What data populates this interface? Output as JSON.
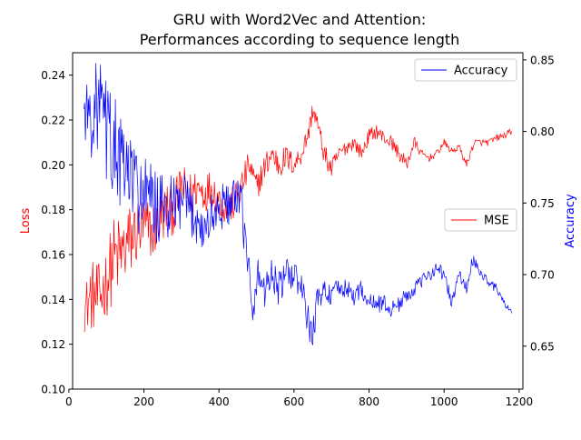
{
  "chart_data": {
    "type": "line",
    "title_line1": "GRU with Word2Vec and Attention:",
    "title_line2": "Performances according to sequence length",
    "xlabel": "",
    "ylabel_left": "Loss",
    "ylabel_right": "Accuracy",
    "xlim": [
      10,
      1210
    ],
    "ylim_left": [
      0.1,
      0.25
    ],
    "ylim_right": [
      0.62,
      0.855
    ],
    "x_ticks": [
      0,
      200,
      400,
      600,
      800,
      1000,
      1200
    ],
    "x_tick_labels": [
      "0",
      "200",
      "400",
      "600",
      "800",
      "1000",
      "1200"
    ],
    "y_left_ticks": [
      0.1,
      0.12,
      0.14,
      0.16,
      0.18,
      0.2,
      0.22,
      0.24
    ],
    "y_left_tick_labels": [
      "0.10",
      "0.12",
      "0.14",
      "0.16",
      "0.18",
      "0.20",
      "0.22",
      "0.24"
    ],
    "y_right_ticks": [
      0.65,
      0.7,
      0.75,
      0.8,
      0.85
    ],
    "y_right_tick_labels": [
      "0.65",
      "0.70",
      "0.75",
      "0.80",
      "0.85"
    ],
    "grid": false,
    "series": [
      {
        "name": "MSE",
        "axis": "left",
        "color": "#ff0000",
        "legend_location": "center-right",
        "x": [
          40,
          60,
          80,
          100,
          120,
          140,
          160,
          180,
          200,
          220,
          240,
          260,
          280,
          300,
          320,
          340,
          360,
          380,
          400,
          420,
          440,
          460,
          480,
          500,
          520,
          540,
          560,
          580,
          600,
          620,
          640,
          650,
          660,
          680,
          700,
          720,
          740,
          760,
          780,
          800,
          820,
          840,
          860,
          880,
          900,
          920,
          940,
          960,
          980,
          1000,
          1020,
          1040,
          1060,
          1080,
          1100,
          1120,
          1140,
          1160,
          1180
        ],
        "values": [
          0.135,
          0.142,
          0.14,
          0.148,
          0.158,
          0.16,
          0.165,
          0.17,
          0.172,
          0.17,
          0.175,
          0.18,
          0.18,
          0.19,
          0.185,
          0.19,
          0.188,
          0.19,
          0.185,
          0.18,
          0.183,
          0.19,
          0.2,
          0.19,
          0.198,
          0.205,
          0.2,
          0.203,
          0.2,
          0.205,
          0.215,
          0.225,
          0.22,
          0.205,
          0.198,
          0.205,
          0.208,
          0.21,
          0.205,
          0.213,
          0.215,
          0.212,
          0.21,
          0.205,
          0.2,
          0.21,
          0.205,
          0.203,
          0.205,
          0.21,
          0.206,
          0.208,
          0.2,
          0.21,
          0.21,
          0.21,
          0.212,
          0.213,
          0.215
        ],
        "noise": [
          0.006,
          0.01,
          0.01,
          0.01,
          0.012,
          0.011,
          0.011,
          0.01,
          0.01,
          0.008,
          0.008,
          0.008,
          0.007,
          0.007,
          0.007,
          0.006,
          0.006,
          0.005,
          0.005,
          0.005,
          0.005,
          0.005,
          0.004,
          0.004,
          0.004,
          0.004,
          0.004,
          0.004,
          0.003,
          0.003,
          0.003,
          0.003,
          0.003,
          0.003,
          0.003,
          0.002,
          0.002,
          0.002,
          0.002,
          0.002,
          0.002,
          0.002,
          0.002,
          0.002,
          0.002,
          0.002,
          0.001,
          0.001,
          0.001,
          0.001,
          0.001,
          0.001,
          0.001,
          0.001,
          0.001,
          0.001,
          0.001,
          0.001,
          0.001
        ]
      },
      {
        "name": "Accuracy",
        "axis": "right",
        "color": "#0000ff",
        "legend_location": "upper-right",
        "x": [
          40,
          60,
          80,
          100,
          120,
          140,
          160,
          180,
          200,
          220,
          240,
          260,
          280,
          300,
          320,
          340,
          360,
          380,
          400,
          420,
          440,
          460,
          480,
          490,
          500,
          520,
          540,
          560,
          580,
          600,
          620,
          640,
          650,
          660,
          680,
          700,
          720,
          740,
          760,
          780,
          800,
          820,
          840,
          860,
          880,
          900,
          920,
          940,
          960,
          980,
          1000,
          1020,
          1040,
          1060,
          1075,
          1100,
          1120,
          1140,
          1160,
          1180
        ],
        "values": [
          0.815,
          0.81,
          0.82,
          0.8,
          0.79,
          0.775,
          0.77,
          0.76,
          0.755,
          0.75,
          0.745,
          0.745,
          0.745,
          0.75,
          0.745,
          0.74,
          0.73,
          0.74,
          0.745,
          0.75,
          0.75,
          0.75,
          0.7,
          0.66,
          0.7,
          0.69,
          0.7,
          0.69,
          0.7,
          0.7,
          0.69,
          0.665,
          0.655,
          0.68,
          0.69,
          0.685,
          0.69,
          0.69,
          0.685,
          0.69,
          0.68,
          0.68,
          0.68,
          0.675,
          0.68,
          0.685,
          0.69,
          0.695,
          0.7,
          0.705,
          0.7,
          0.68,
          0.7,
          0.69,
          0.71,
          0.7,
          0.695,
          0.69,
          0.68,
          0.673
        ],
        "noise": [
          0.012,
          0.018,
          0.022,
          0.022,
          0.024,
          0.022,
          0.02,
          0.02,
          0.018,
          0.018,
          0.016,
          0.016,
          0.015,
          0.014,
          0.013,
          0.012,
          0.012,
          0.011,
          0.01,
          0.01,
          0.01,
          0.01,
          0.012,
          0.01,
          0.009,
          0.009,
          0.008,
          0.008,
          0.007,
          0.007,
          0.007,
          0.007,
          0.008,
          0.006,
          0.005,
          0.005,
          0.005,
          0.004,
          0.004,
          0.004,
          0.004,
          0.004,
          0.004,
          0.004,
          0.004,
          0.003,
          0.003,
          0.003,
          0.003,
          0.003,
          0.003,
          0.003,
          0.003,
          0.003,
          0.003,
          0.002,
          0.002,
          0.002,
          0.002,
          0.001
        ]
      }
    ]
  }
}
